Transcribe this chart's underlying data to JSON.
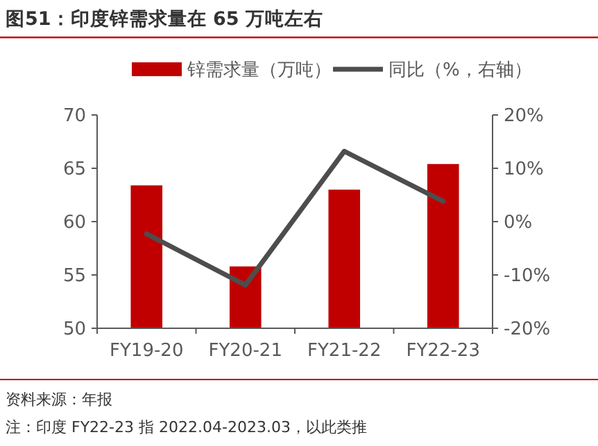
{
  "chart_data": {
    "type": "bar",
    "title": "图51：印度锌需求量在 65 万吨左右",
    "categories": [
      "FY19-20",
      "FY20-21",
      "FY21-22",
      "FY22-23"
    ],
    "series": [
      {
        "name": "锌需求量（万吨）",
        "color": "#c00000",
        "values": [
          63.4,
          55.8,
          63.0,
          65.4
        ]
      },
      {
        "name": "同比（%，右轴）",
        "type": "line",
        "axis": "y2",
        "color": "#4d4d4d",
        "values": [
          -2.3,
          -11.9,
          13.2,
          3.8
        ]
      }
    ],
    "ylim": [
      50,
      70
    ],
    "yticks": [
      50,
      55,
      60,
      65,
      70
    ],
    "y2lim": [
      -20,
      20
    ],
    "y2ticks": [
      {
        "value": -20,
        "label": "-20%"
      },
      {
        "value": -10,
        "label": "-10%"
      },
      {
        "value": 0,
        "label": "0%"
      },
      {
        "value": 10,
        "label": "10%"
      },
      {
        "value": 20,
        "label": "20%"
      }
    ],
    "legend": "top",
    "grid": false,
    "annotations": [
      "资料来源：年报",
      "注：印度 FY22-23 指 2022.04-2023.03，以此类推"
    ]
  }
}
